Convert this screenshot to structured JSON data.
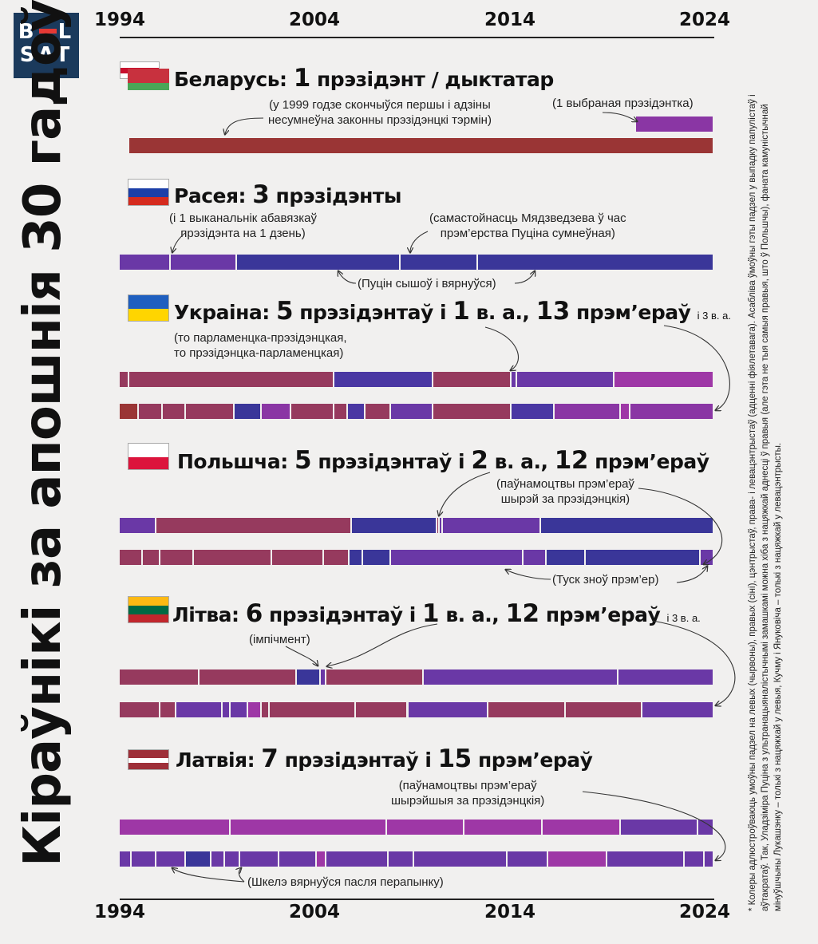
{
  "logo": {
    "line1": "BELSAT",
    "l1a": "B",
    "l1b": "L",
    "l2": "SAT"
  },
  "title": "Кіраўнікі за апошнія 30 гадоў",
  "footnote": "* Колеры адлюстроўваюць умоўны падзел на левых (чырвоны), правых (сіні), цэнтрыстаў, права- і левацэнтрыстаў (адценні фіялетавага). Асаблівa ўмоўны гэты падзел у выпадку папулістаў і аўтакратаў. Так, Уладзіміра Пуціна з ультранацыяналістычнымі замашкамі можна хіба з нацяжкай аднесці ў правыя (але гэта не тыя самыя правыя, што ў Польшчы), фаната камуністычнай мінуўшчыны Лукашэнку – толькі з нацяжкай у левыя, Кучму і Януковіча – толькі з нацяжкай у левацэнтрысты.",
  "axis": {
    "top": [
      "1994",
      "2004",
      "2014",
      "2024"
    ],
    "bottom": [
      "1994",
      "2004",
      "2014",
      "2024"
    ]
  },
  "colors": {
    "red": "#9a3535",
    "crimson": "#963a5e",
    "purple": "#6a38a6",
    "violet": "#8a36a4",
    "magenta": "#9e37a6",
    "navy": "#3a3699",
    "indigo": "#4a37a3"
  },
  "chart_data": {
    "type": "timeline",
    "x_range": [
      1994,
      2024.5
    ],
    "countries": [
      {
        "name": "Беларусь:",
        "count": "1",
        "rest": "прэзідэнт / дыктатар",
        "annotations": [
          "(у 1999 годзе скончыўся першы і адзіны",
          "несумнеўна законны прэзідэнцкі тэрмін)",
          "(1 выбраная прэзідэнтка)"
        ],
        "tracks": [
          {
            "role": "presidents",
            "segments": [
              [
                1994.5,
                2024.5,
                "red"
              ]
            ]
          },
          {
            "role": "elected",
            "segments": [
              [
                2020.5,
                2024.5,
                "violet"
              ]
            ]
          }
        ]
      },
      {
        "name": "Расея:",
        "count": "3",
        "rest": "прэзідэнты",
        "annotations": [
          "(і 1 выканальнік абавязкаў",
          "прэзідэнта на 1 дзень)",
          "(самастойнасць Мядзведзева ў час",
          "прэм’ерства Пуціна сумнеўная)",
          "(Пуцін сышоў і вярнуўся)"
        ],
        "tracks": [
          {
            "role": "presidents",
            "segments": [
              [
                1994.0,
                1996.6,
                "purple"
              ],
              [
                1996.6,
                2000.0,
                "purple"
              ],
              [
                2000.0,
                2008.4,
                "navy"
              ],
              [
                2008.4,
                2012.4,
                "navy"
              ],
              [
                2012.4,
                2024.5,
                "navy"
              ]
            ]
          }
        ]
      },
      {
        "name": "Украіна:",
        "count": "5",
        "rest": "прэзідэнтаў і",
        "count2": "1",
        "rest2": "в. а.,",
        "count3": "13",
        "rest3": "прэм’ераў",
        "small": "і 3 в. а.",
        "annotations": [
          "(то парламенцка-прэзідэнцкая,",
          "то прэзідэнцка-парламенцкая)"
        ],
        "tracks": [
          {
            "role": "presidents",
            "segments": [
              [
                1994.0,
                1994.5,
                "crimson"
              ],
              [
                1994.5,
                2005.0,
                "crimson"
              ],
              [
                2005.0,
                2010.1,
                "indigo"
              ],
              [
                2010.1,
                2014.1,
                "crimson"
              ],
              [
                2014.1,
                2014.4,
                "purple"
              ],
              [
                2014.4,
                2019.4,
                "purple"
              ],
              [
                2019.4,
                2024.5,
                "magenta"
              ]
            ]
          },
          {
            "role": "prime_ministers",
            "segments": [
              [
                1994.0,
                1995.0,
                "red"
              ],
              [
                1995.0,
                1996.2,
                "crimson"
              ],
              [
                1996.2,
                1997.4,
                "crimson"
              ],
              [
                1997.4,
                1999.9,
                "crimson"
              ],
              [
                1999.9,
                2001.3,
                "navy"
              ],
              [
                2001.3,
                2002.8,
                "violet"
              ],
              [
                2002.8,
                2005.0,
                "crimson"
              ],
              [
                2005.0,
                2005.7,
                "crimson"
              ],
              [
                2005.7,
                2006.6,
                "indigo"
              ],
              [
                2006.6,
                2007.9,
                "crimson"
              ],
              [
                2007.9,
                2010.1,
                "purple"
              ],
              [
                2010.1,
                2014.1,
                "crimson"
              ],
              [
                2014.1,
                2016.3,
                "indigo"
              ],
              [
                2016.3,
                2019.7,
                "violet"
              ],
              [
                2019.7,
                2020.2,
                "magenta"
              ],
              [
                2020.2,
                2024.5,
                "violet"
              ]
            ]
          }
        ]
      },
      {
        "name": "Польшча:",
        "count": "5",
        "rest": "прэзідэнтаў і",
        "count2": "2",
        "rest2": "в. а.,",
        "count3": "12",
        "rest3": "прэм’ераў",
        "annotations": [
          "(паўнамоцтвы прэм’ераў",
          "шырэй за прэзідэнцкія)",
          "(Туск зноў прэм’ер)"
        ],
        "tracks": [
          {
            "role": "presidents",
            "segments": [
              [
                1994.0,
                1995.9,
                "purple"
              ],
              [
                1995.9,
                2005.9,
                "crimson"
              ],
              [
                2005.9,
                2010.3,
                "navy"
              ],
              [
                2010.3,
                2010.4,
                "crimson"
              ],
              [
                2010.4,
                2010.6,
                "purple"
              ],
              [
                2010.6,
                2015.6,
                "purple"
              ],
              [
                2015.6,
                2024.5,
                "navy"
              ]
            ]
          },
          {
            "role": "prime_ministers",
            "segments": [
              [
                1994.0,
                1995.2,
                "crimson"
              ],
              [
                1995.2,
                1996.1,
                "crimson"
              ],
              [
                1996.1,
                1997.8,
                "crimson"
              ],
              [
                1997.8,
                2001.8,
                "crimson"
              ],
              [
                2001.8,
                2004.5,
                "crimson"
              ],
              [
                2004.5,
                2005.8,
                "crimson"
              ],
              [
                2005.8,
                2006.5,
                "navy"
              ],
              [
                2006.5,
                2007.9,
                "navy"
              ],
              [
                2007.9,
                2014.7,
                "purple"
              ],
              [
                2014.7,
                2015.9,
                "purple"
              ],
              [
                2015.9,
                2017.9,
                "navy"
              ],
              [
                2017.9,
                2023.8,
                "navy"
              ],
              [
                2023.8,
                2024.5,
                "purple"
              ]
            ]
          }
        ]
      },
      {
        "name": "Літва:",
        "count": "6",
        "rest": "прэзідэнтаў і",
        "count2": "1",
        "rest2": "в. а.,",
        "count3": "12",
        "rest3": "прэм’ераў",
        "small": "і 3 в. а.",
        "annotations": [
          "(імпічмент)"
        ],
        "tracks": [
          {
            "role": "presidents",
            "segments": [
              [
                1994.0,
                1998.1,
                "crimson"
              ],
              [
                1998.1,
                2003.1,
                "crimson"
              ],
              [
                2003.1,
                2004.3,
                "navy"
              ],
              [
                2004.3,
                2004.6,
                "purple"
              ],
              [
                2004.6,
                2009.6,
                "crimson"
              ],
              [
                2009.6,
                2019.6,
                "purple"
              ],
              [
                2019.6,
                2024.5,
                "purple"
              ]
            ]
          },
          {
            "role": "prime_ministers",
            "segments": [
              [
                1994.0,
                1996.1,
                "crimson"
              ],
              [
                1996.1,
                1996.9,
                "crimson"
              ],
              [
                1996.9,
                1999.3,
                "purple"
              ],
              [
                1999.3,
                1999.7,
                "purple"
              ],
              [
                1999.7,
                2000.6,
                "purple"
              ],
              [
                2000.6,
                2001.3,
                "magenta"
              ],
              [
                2001.3,
                2001.7,
                "crimson"
              ],
              [
                2001.7,
                2006.1,
                "crimson"
              ],
              [
                2006.1,
                2008.8,
                "crimson"
              ],
              [
                2008.8,
                2012.9,
                "purple"
              ],
              [
                2012.9,
                2016.9,
                "crimson"
              ],
              [
                2016.9,
                2020.8,
                "crimson"
              ],
              [
                2020.8,
                2024.5,
                "purple"
              ]
            ]
          }
        ]
      },
      {
        "name": "Латвія:",
        "count": "7",
        "rest": "прэзідэнтаў і",
        "count2": "15",
        "rest2": "прэм’ераў",
        "annotations": [
          "(паўнамоцтвы прэм’ераў",
          "шырэйшыя за прэзідэнцкія)",
          "(Шкелэ вярнуўся пасля перапынку)"
        ],
        "tracks": [
          {
            "role": "presidents",
            "segments": [
              [
                1994.0,
                1999.7,
                "magenta"
              ],
              [
                1999.7,
                2007.7,
                "magenta"
              ],
              [
                2007.7,
                2011.7,
                "magenta"
              ],
              [
                2011.7,
                2015.7,
                "magenta"
              ],
              [
                2015.7,
                2019.7,
                "magenta"
              ],
              [
                2019.7,
                2023.7,
                "purple"
              ],
              [
                2023.7,
                2024.5,
                "purple"
              ]
            ]
          },
          {
            "role": "prime_ministers",
            "segments": [
              [
                1994.0,
                1994.6,
                "purple"
              ],
              [
                1994.6,
                1995.9,
                "purple"
              ],
              [
                1995.9,
                1997.4,
                "purple"
              ],
              [
                1997.4,
                1998.7,
                "navy"
              ],
              [
                1998.7,
                1999.4,
                "purple"
              ],
              [
                1999.4,
                2000.2,
                "purple"
              ],
              [
                2000.2,
                2002.2,
                "purple"
              ],
              [
                2002.2,
                2004.1,
                "purple"
              ],
              [
                2004.1,
                2004.6,
                "magenta"
              ],
              [
                2004.6,
                2007.8,
                "purple"
              ],
              [
                2007.8,
                2009.1,
                "purple"
              ],
              [
                2009.1,
                2013.9,
                "purple"
              ],
              [
                2013.9,
                2016.0,
                "purple"
              ],
              [
                2016.0,
                2019.0,
                "magenta"
              ],
              [
                2019.0,
                2023.0,
                "purple"
              ],
              [
                2023.0,
                2024.0,
                "purple"
              ],
              [
                2024.0,
                2024.5,
                "purple"
              ]
            ]
          }
        ]
      }
    ]
  }
}
